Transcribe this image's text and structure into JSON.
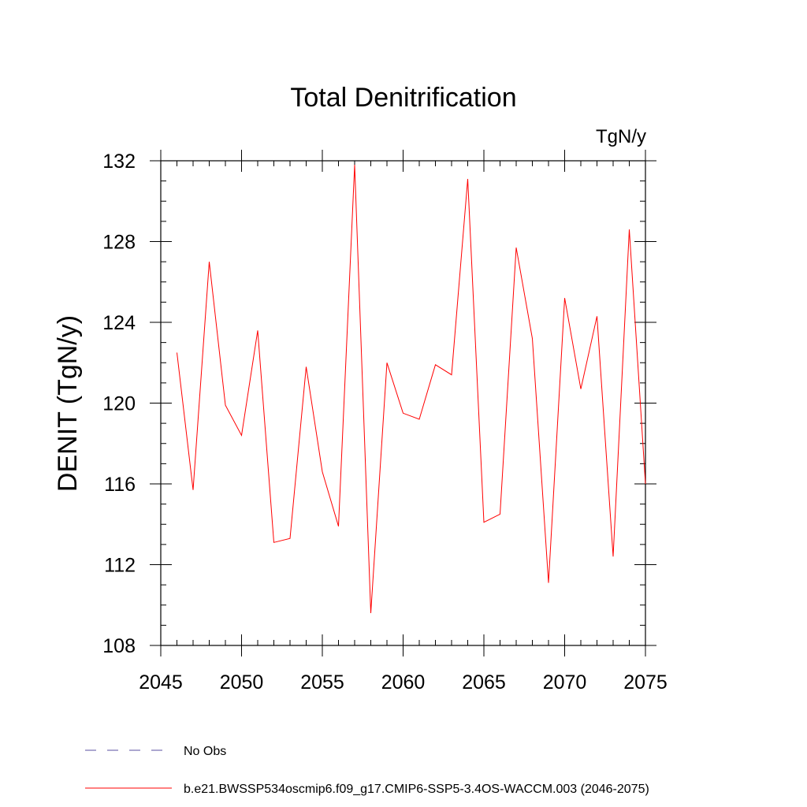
{
  "chart_data": {
    "type": "line",
    "title": "Total Denitrification",
    "units_label": "TgN/y",
    "xlabel": "",
    "ylabel": "DENIT  (TgN/y)",
    "xlim": [
      2045,
      2075
    ],
    "ylim": [
      108,
      132
    ],
    "x_ticks": [
      2045,
      2050,
      2055,
      2060,
      2065,
      2070,
      2075
    ],
    "y_ticks": [
      108,
      112,
      116,
      120,
      124,
      128,
      132
    ],
    "grid": false,
    "series": [
      {
        "name": "b.e21.BWSSP534oscmip6.f09_g17.CMIP6-SSP5-3.4OS-WACCM.003 (2046-2075)",
        "color": "#ff0000",
        "x": [
          2046,
          2047,
          2048,
          2049,
          2050,
          2051,
          2052,
          2053,
          2054,
          2055,
          2056,
          2057,
          2058,
          2059,
          2060,
          2061,
          2062,
          2063,
          2064,
          2065,
          2066,
          2067,
          2068,
          2069,
          2070,
          2071,
          2072,
          2073,
          2074,
          2075
        ],
        "values": [
          122.5,
          115.7,
          127.0,
          119.9,
          118.4,
          123.6,
          113.1,
          113.3,
          121.8,
          116.6,
          113.9,
          131.8,
          109.6,
          122.0,
          119.5,
          119.2,
          121.9,
          121.4,
          131.1,
          114.1,
          114.5,
          127.7,
          123.2,
          111.1,
          125.2,
          120.7,
          124.3,
          112.4,
          128.6,
          116.0
        ]
      }
    ],
    "legend": {
      "placement": "bottom-left",
      "entries": [
        {
          "label": "No Obs",
          "color": "#5a4fa0",
          "style": "dashed"
        },
        {
          "label": "b.e21.BWSSP534oscmip6.f09_g17.CMIP6-SSP5-3.4OS-WACCM.003 (2046-2075)",
          "color": "#ff0000",
          "style": "solid"
        }
      ]
    }
  }
}
